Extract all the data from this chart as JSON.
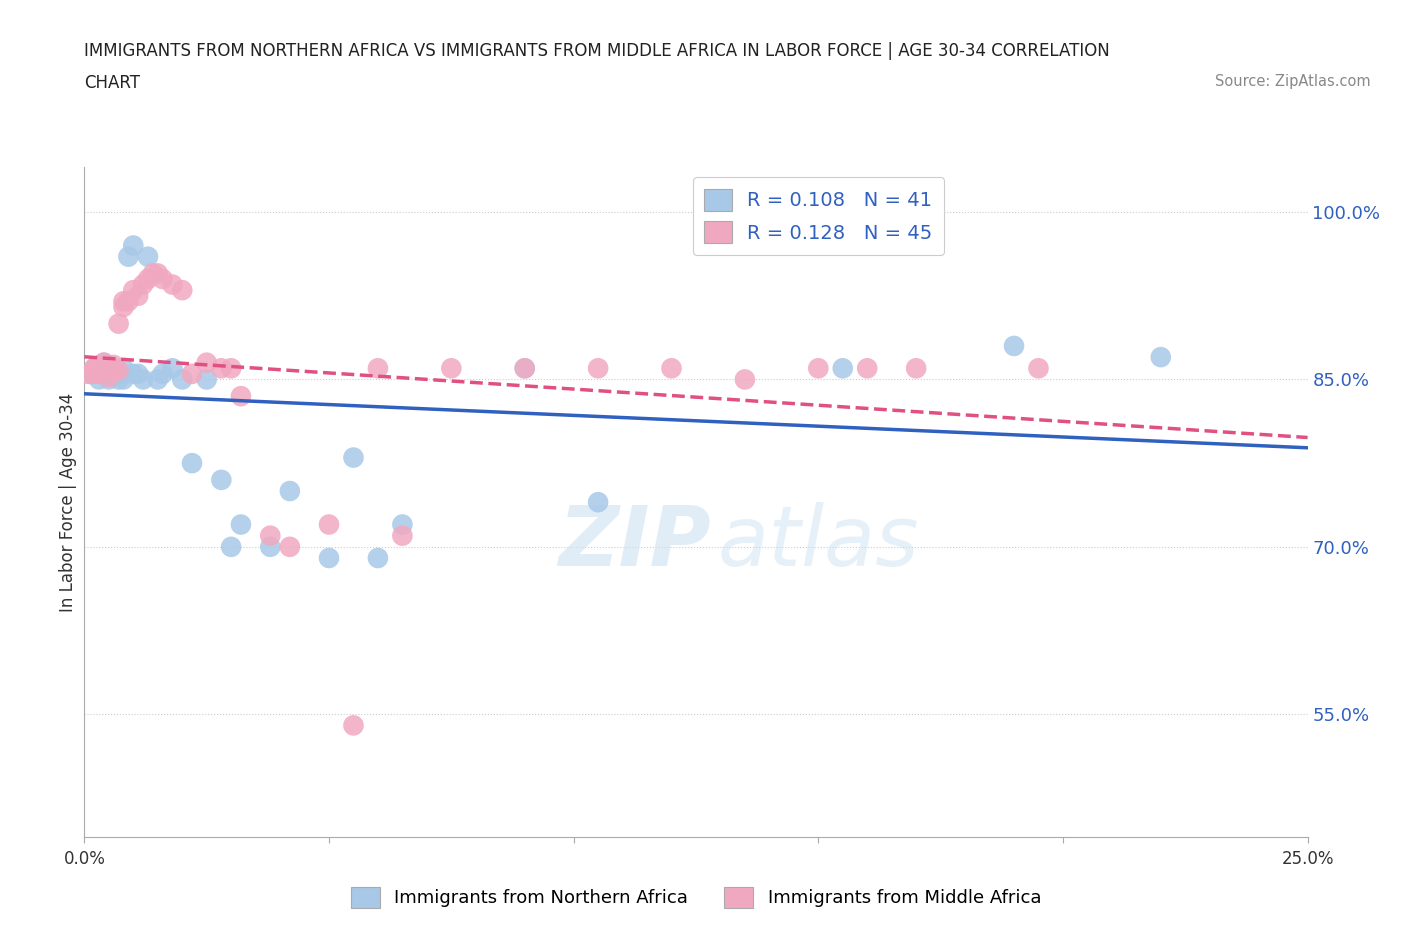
{
  "title_line1": "IMMIGRANTS FROM NORTHERN AFRICA VS IMMIGRANTS FROM MIDDLE AFRICA IN LABOR FORCE | AGE 30-34 CORRELATION",
  "title_line2": "CHART",
  "source": "Source: ZipAtlas.com",
  "ylabel": "In Labor Force | Age 30-34",
  "ytick_values": [
    0.55,
    0.7,
    0.85,
    1.0
  ],
  "xlim": [
    0.0,
    0.25
  ],
  "ylim": [
    0.44,
    1.04
  ],
  "blue_r": 0.108,
  "blue_n": 41,
  "pink_r": 0.128,
  "pink_n": 45,
  "blue_color": "#a8c8e8",
  "pink_color": "#f0a8c0",
  "blue_line_color": "#3060c0",
  "pink_line_color": "#e05080",
  "watermark_zip": "ZIP",
  "watermark_atlas": "atlas",
  "blue_scatter_x": [
    0.001,
    0.002,
    0.002,
    0.003,
    0.003,
    0.004,
    0.004,
    0.005,
    0.005,
    0.006,
    0.006,
    0.007,
    0.007,
    0.008,
    0.008,
    0.009,
    0.01,
    0.01,
    0.011,
    0.012,
    0.013,
    0.015,
    0.016,
    0.018,
    0.02,
    0.022,
    0.025,
    0.028,
    0.03,
    0.032,
    0.038,
    0.042,
    0.05,
    0.055,
    0.06,
    0.065,
    0.09,
    0.105,
    0.155,
    0.19,
    0.22
  ],
  "blue_scatter_y": [
    0.855,
    0.86,
    0.855,
    0.85,
    0.86,
    0.865,
    0.855,
    0.85,
    0.86,
    0.855,
    0.86,
    0.855,
    0.85,
    0.86,
    0.85,
    0.96,
    0.97,
    0.855,
    0.855,
    0.85,
    0.96,
    0.85,
    0.855,
    0.86,
    0.85,
    0.775,
    0.85,
    0.76,
    0.7,
    0.72,
    0.7,
    0.75,
    0.69,
    0.78,
    0.69,
    0.72,
    0.86,
    0.74,
    0.86,
    0.88,
    0.87
  ],
  "pink_scatter_x": [
    0.001,
    0.002,
    0.002,
    0.003,
    0.003,
    0.004,
    0.004,
    0.005,
    0.005,
    0.006,
    0.006,
    0.007,
    0.007,
    0.008,
    0.008,
    0.009,
    0.01,
    0.011,
    0.012,
    0.013,
    0.014,
    0.015,
    0.016,
    0.018,
    0.02,
    0.022,
    0.025,
    0.028,
    0.03,
    0.032,
    0.038,
    0.042,
    0.05,
    0.055,
    0.06,
    0.065,
    0.075,
    0.09,
    0.105,
    0.12,
    0.135,
    0.15,
    0.16,
    0.17,
    0.195
  ],
  "pink_scatter_y": [
    0.855,
    0.86,
    0.855,
    0.855,
    0.862,
    0.865,
    0.858,
    0.852,
    0.86,
    0.858,
    0.863,
    0.858,
    0.9,
    0.915,
    0.92,
    0.92,
    0.93,
    0.925,
    0.935,
    0.94,
    0.945,
    0.945,
    0.94,
    0.935,
    0.93,
    0.855,
    0.865,
    0.86,
    0.86,
    0.835,
    0.71,
    0.7,
    0.72,
    0.54,
    0.86,
    0.71,
    0.86,
    0.86,
    0.86,
    0.86,
    0.85,
    0.86,
    0.86,
    0.86,
    0.86
  ]
}
